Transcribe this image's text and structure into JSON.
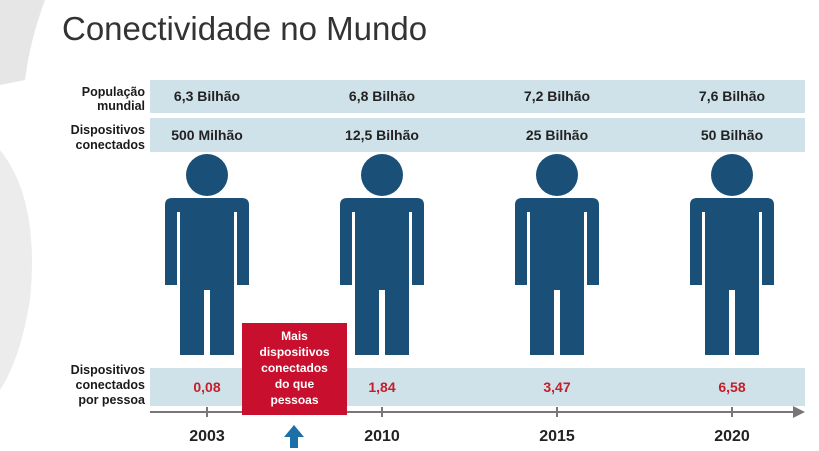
{
  "header": {
    "title": "Conectividade no Mundo"
  },
  "rows": [
    {
      "label": [
        "População",
        "mundial"
      ]
    },
    {
      "label": [
        "Dispositivos",
        "conectados"
      ]
    },
    {
      "label": [
        "Dispositivos",
        "conectados",
        "por pessoa"
      ]
    }
  ],
  "columns": [
    {
      "year": "2003",
      "population": "6,3 Bilhão",
      "devices": "500 Milhão",
      "per_person": "0,08"
    },
    {
      "year": "2010",
      "population": "6,8 Bilhão",
      "devices": "12,5 Bilhão",
      "per_person": "1,84"
    },
    {
      "year": "2015",
      "population": "7,2 Bilhão",
      "devices": "25 Bilhão",
      "per_person": "3,47"
    },
    {
      "year": "2020",
      "population": "7,6 Bilhão",
      "devices": "50 Bilhão",
      "per_person": "6,58"
    }
  ],
  "callout": {
    "lines": [
      "Mais",
      "dispositivos",
      "conectados",
      "do que",
      "pessoas"
    ]
  }
}
